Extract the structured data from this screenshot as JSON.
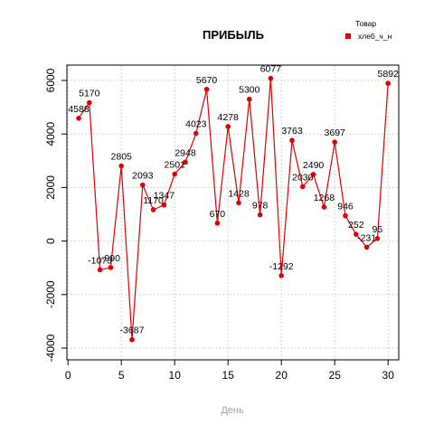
{
  "chart_data": {
    "type": "line",
    "title": "ПРИБЫЛЬ",
    "xlabel": "День",
    "ylabel": "",
    "xlim": [
      0,
      31
    ],
    "ylim": [
      -4000,
      6600
    ],
    "x_ticks": [
      0,
      5,
      10,
      15,
      20,
      25,
      30
    ],
    "y_ticks": [
      -4000,
      -2000,
      0,
      2000,
      4000,
      6000
    ],
    "grid": true,
    "legend": {
      "title": "Товар",
      "position": "top-right"
    },
    "series": [
      {
        "name": "хлеб_ч_н",
        "color": "#e00000",
        "x": [
          1,
          2,
          3,
          4,
          5,
          6,
          7,
          8,
          9,
          10,
          11,
          12,
          13,
          14,
          15,
          16,
          17,
          18,
          19,
          20,
          21,
          22,
          23,
          24,
          25,
          26,
          27,
          28,
          29,
          30
        ],
        "values": [
          4588,
          5170,
          -1073,
          -990,
          2805,
          -3687,
          2093,
          1170,
          1347,
          2501,
          2948,
          4023,
          5670,
          670,
          4278,
          1428,
          5300,
          978,
          6077,
          -1292,
          3763,
          2030,
          2490,
          1268,
          3697,
          946,
          252,
          -231,
          95,
          5892
        ],
        "labels": [
          "4588",
          "5170",
          "-1073",
          "-990",
          "2805",
          "-3687",
          "2093",
          "1170",
          "1347",
          "2501",
          "2948",
          "4023",
          "5670",
          "670",
          "4278",
          "1428",
          "5300",
          "978",
          "6077",
          "-1292",
          "3763",
          "2030",
          "2490",
          "1268",
          "3697",
          "946",
          "252",
          "-231",
          "95",
          "5892"
        ]
      }
    ]
  }
}
